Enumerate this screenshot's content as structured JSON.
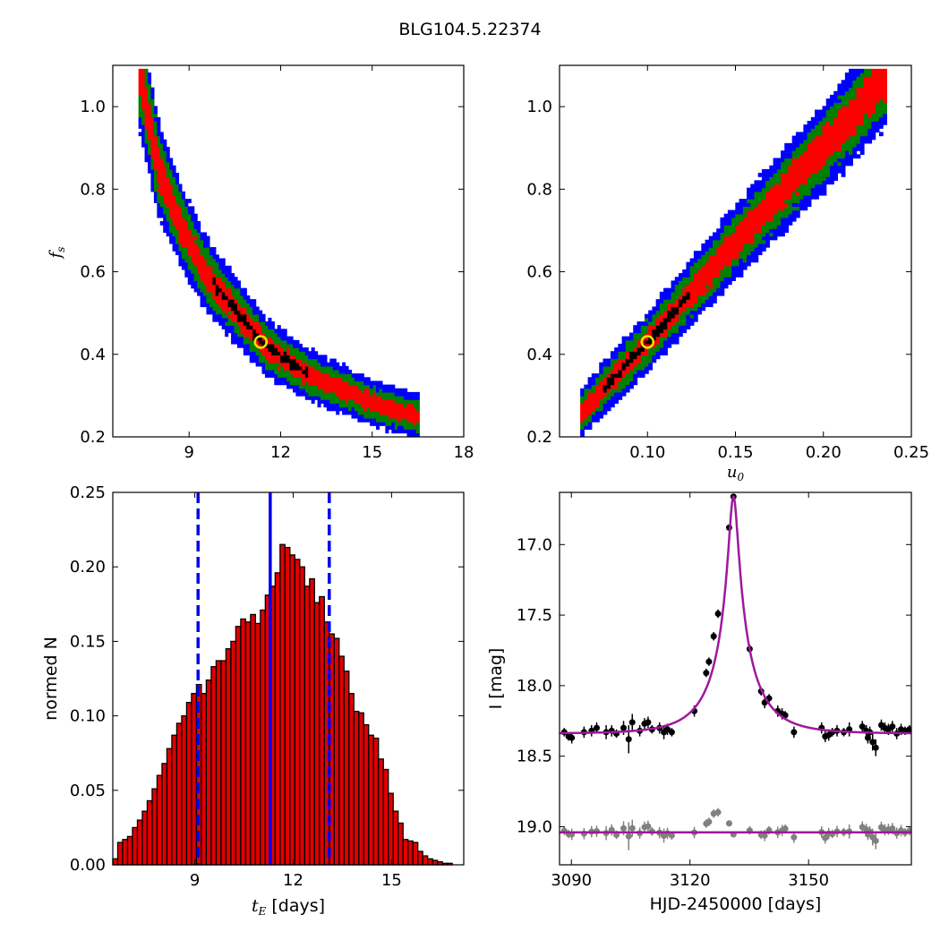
{
  "figure_title": "BLG104.5.22374",
  "chart_data": [
    {
      "id": "fs-vs-tE",
      "type": "heatmap",
      "xlim": [
        6.5,
        18
      ],
      "ylim": [
        0.2,
        1.1
      ],
      "xticks": [
        "9",
        "12",
        "15",
        "18"
      ],
      "yticks": [
        "0.2",
        "0.4",
        "0.6",
        "0.8",
        "1.0"
      ],
      "ylabel": "f",
      "ylabel_sub": "s",
      "best_fit": {
        "x": 11.35,
        "y": 0.43
      },
      "colors": {
        "sigma3": "#0000ff",
        "sigma2": "#008000",
        "sigma1": "#ff0000",
        "best": "#000000",
        "marker": "#e8e800"
      },
      "band": [
        [
          7.4,
          1.08
        ],
        [
          8.0,
          0.85
        ],
        [
          8.7,
          0.72
        ],
        [
          9.5,
          0.6
        ],
        [
          10.5,
          0.51
        ],
        [
          11.5,
          0.42
        ],
        [
          12.5,
          0.37
        ],
        [
          13.5,
          0.33
        ],
        [
          14.5,
          0.3
        ],
        [
          15.5,
          0.27
        ],
        [
          16.5,
          0.25
        ]
      ]
    },
    {
      "id": "fs-vs-u0",
      "type": "heatmap",
      "xlim": [
        0.05,
        0.25
      ],
      "ylim": [
        0.2,
        1.1
      ],
      "xticks": [
        "0.10",
        "0.15",
        "0.20",
        "0.25"
      ],
      "yticks": [
        "0.2",
        "0.4",
        "0.6",
        "0.8",
        "1.0"
      ],
      "xlabel": "u",
      "xlabel_sub": "0",
      "best_fit": {
        "x": 0.1,
        "y": 0.43
      },
      "colors": {
        "sigma3": "#0000ff",
        "sigma2": "#008000",
        "sigma1": "#ff0000",
        "best": "#000000",
        "marker": "#e8e800"
      },
      "band": [
        [
          0.063,
          0.26
        ],
        [
          0.1,
          0.43
        ],
        [
          0.15,
          0.67
        ],
        [
          0.2,
          0.9
        ],
        [
          0.235,
          1.07
        ]
      ]
    },
    {
      "id": "tE-histogram",
      "type": "bar",
      "xlabel": "t",
      "xlabel_sub": "E",
      "xlabel_suffix": " [days]",
      "ylabel": "normed N",
      "xlim": [
        6.5,
        17.2
      ],
      "ylim": [
        0,
        0.25
      ],
      "xticks": [
        "9",
        "12",
        "15"
      ],
      "yticks": [
        "0.00",
        "0.05",
        "0.10",
        "0.15",
        "0.20",
        "0.25"
      ],
      "bin_start": 6.5,
      "bin_width": 0.15,
      "values": [
        0.004,
        0.015,
        0.017,
        0.019,
        0.025,
        0.03,
        0.036,
        0.043,
        0.051,
        0.06,
        0.068,
        0.078,
        0.087,
        0.095,
        0.1,
        0.109,
        0.115,
        0.121,
        0.115,
        0.124,
        0.133,
        0.137,
        0.137,
        0.145,
        0.15,
        0.16,
        0.165,
        0.163,
        0.168,
        0.162,
        0.171,
        0.181,
        0.187,
        0.196,
        0.215,
        0.213,
        0.208,
        0.205,
        0.2,
        0.187,
        0.192,
        0.176,
        0.18,
        0.163,
        0.155,
        0.152,
        0.14,
        0.13,
        0.115,
        0.103,
        0.102,
        0.094,
        0.087,
        0.085,
        0.071,
        0.064,
        0.048,
        0.036,
        0.028,
        0.017,
        0.016,
        0.015,
        0.009,
        0.006,
        0.004,
        0.003,
        0.002,
        0.001,
        0.001
      ],
      "median": 11.3,
      "lower": 9.1,
      "upper": 13.1,
      "colors": {
        "bar": "#e00000",
        "line": "#0000ee"
      }
    },
    {
      "id": "light-curve",
      "type": "scatter",
      "xlabel": "HJD-2450000 [days]",
      "ylabel": "I [mag]",
      "xlim": [
        3087,
        3176
      ],
      "ylim": [
        19.27,
        16.63
      ],
      "xticks": [
        "3090",
        "3120",
        "3150"
      ],
      "yticks": [
        "17.0",
        "17.5",
        "18.0",
        "18.5",
        "19.0"
      ],
      "model": {
        "t0": 3131.0,
        "baseline": 18.34,
        "peak": 16.66,
        "u0": 0.1,
        "tE": 11.3
      },
      "residual_baseline": 19.04,
      "colors": {
        "data": "#000000",
        "residuals": "#808080",
        "model": "#a0189c"
      },
      "points": [
        [
          3088.2,
          18.33,
          0.03
        ],
        [
          3089.3,
          18.36,
          0.03
        ],
        [
          3090.1,
          18.37,
          0.04
        ],
        [
          3093.2,
          18.33,
          0.04
        ],
        [
          3095.1,
          18.32,
          0.04
        ],
        [
          3096.4,
          18.3,
          0.04
        ],
        [
          3098.8,
          18.33,
          0.05
        ],
        [
          3100.2,
          18.32,
          0.04
        ],
        [
          3101.4,
          18.34,
          0.03
        ],
        [
          3103.2,
          18.3,
          0.05
        ],
        [
          3104.5,
          18.38,
          0.1
        ],
        [
          3105.4,
          18.26,
          0.06
        ],
        [
          3107.3,
          18.32,
          0.04
        ],
        [
          3108.5,
          18.27,
          0.04
        ],
        [
          3109.4,
          18.26,
          0.04
        ],
        [
          3110.4,
          18.31,
          0.03
        ],
        [
          3112.3,
          18.3,
          0.04
        ],
        [
          3113.4,
          18.33,
          0.05
        ],
        [
          3114.3,
          18.31,
          0.04
        ],
        [
          3115.4,
          18.33,
          0.03
        ],
        [
          3121.1,
          18.18,
          0.04
        ],
        [
          3124.1,
          17.91,
          0.03
        ],
        [
          3124.8,
          17.83,
          0.03
        ],
        [
          3126.0,
          17.65,
          0.03
        ],
        [
          3127.1,
          17.49,
          0.03
        ],
        [
          3129.9,
          16.88,
          0.02
        ],
        [
          3131.0,
          16.66,
          0.02
        ],
        [
          3135.1,
          17.74,
          0.03
        ],
        [
          3138.0,
          18.04,
          0.03
        ],
        [
          3138.9,
          18.12,
          0.04
        ],
        [
          3140.0,
          18.09,
          0.03
        ],
        [
          3142.2,
          18.18,
          0.04
        ],
        [
          3143.3,
          18.2,
          0.04
        ],
        [
          3144.1,
          18.21,
          0.03
        ],
        [
          3146.3,
          18.33,
          0.04
        ],
        [
          3153.3,
          18.3,
          0.04
        ],
        [
          3154.2,
          18.36,
          0.04
        ],
        [
          3155.1,
          18.35,
          0.04
        ],
        [
          3156.0,
          18.33,
          0.03
        ],
        [
          3157.2,
          18.32,
          0.04
        ],
        [
          3158.9,
          18.33,
          0.03
        ],
        [
          3160.3,
          18.31,
          0.05
        ],
        [
          3163.6,
          18.29,
          0.04
        ],
        [
          3164.6,
          18.32,
          0.04
        ],
        [
          3165.0,
          18.37,
          0.04
        ],
        [
          3165.5,
          18.33,
          0.04
        ],
        [
          3166.2,
          18.4,
          0.06
        ],
        [
          3167.0,
          18.44,
          0.06
        ],
        [
          3168.4,
          18.28,
          0.04
        ],
        [
          3169.3,
          18.3,
          0.04
        ],
        [
          3170.2,
          18.31,
          0.04
        ],
        [
          3171.2,
          18.29,
          0.04
        ],
        [
          3172.3,
          18.34,
          0.04
        ],
        [
          3173.4,
          18.31,
          0.04
        ],
        [
          3174.4,
          18.32,
          0.03
        ],
        [
          3175.5,
          18.31,
          0.03
        ]
      ]
    }
  ]
}
